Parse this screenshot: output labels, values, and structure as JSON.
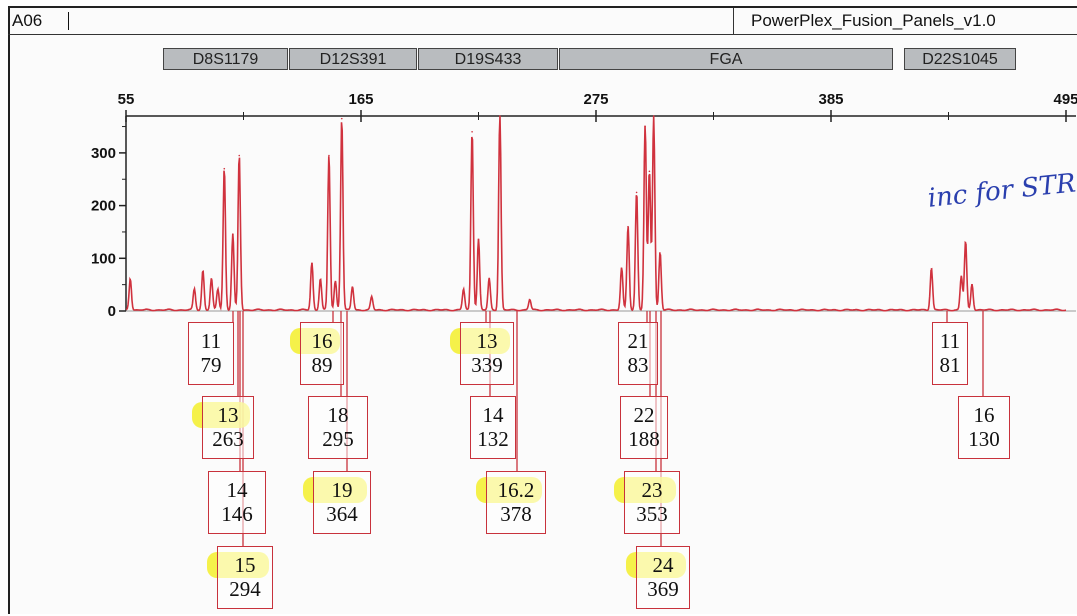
{
  "header": {
    "sample_id": "A06",
    "panel_name": "PowerPlex_Fusion_Panels_v1.0"
  },
  "markers": [
    {
      "name": "D8S1179"
    },
    {
      "name": "D12S391"
    },
    {
      "name": "D19S433"
    },
    {
      "name": "FGA"
    },
    {
      "name": "D22S1045"
    }
  ],
  "annotation": "inc for STR",
  "colors": {
    "trace": "#d0323e",
    "allele_border": "#c8323c",
    "highlight": "#f3ef2a",
    "marker_fill": "#b9bcbf",
    "annotation_ink": "#2a3fae"
  },
  "chart_data": {
    "type": "line",
    "title": "",
    "xlabel": "",
    "ylabel": "",
    "x_ticks": [
      "55",
      "165",
      "275",
      "385",
      "495"
    ],
    "y_ticks": [
      "0",
      "100",
      "200",
      "300"
    ],
    "xlim": [
      55,
      495
    ],
    "ylim": [
      0,
      370
    ],
    "grid": false,
    "peaks": [
      {
        "size": 57,
        "height": 60
      },
      {
        "size": 87,
        "height": 40
      },
      {
        "size": 91,
        "height": 75
      },
      {
        "size": 95,
        "height": 60
      },
      {
        "size": 98,
        "height": 40
      },
      {
        "size": 101,
        "height": 270
      },
      {
        "size": 105,
        "height": 145
      },
      {
        "size": 108,
        "height": 295
      },
      {
        "size": 142,
        "height": 90
      },
      {
        "size": 146,
        "height": 60
      },
      {
        "size": 150,
        "height": 295
      },
      {
        "size": 153,
        "height": 55
      },
      {
        "size": 156,
        "height": 365
      },
      {
        "size": 161,
        "height": 45
      },
      {
        "size": 170,
        "height": 25
      },
      {
        "size": 213,
        "height": 40
      },
      {
        "size": 217,
        "height": 340
      },
      {
        "size": 220,
        "height": 135
      },
      {
        "size": 225,
        "height": 60
      },
      {
        "size": 230,
        "height": 370
      },
      {
        "size": 244,
        "height": 20
      },
      {
        "size": 287,
        "height": 80
      },
      {
        "size": 290,
        "height": 160
      },
      {
        "size": 294,
        "height": 225
      },
      {
        "size": 298,
        "height": 350
      },
      {
        "size": 300,
        "height": 265
      },
      {
        "size": 302,
        "height": 370
      },
      {
        "size": 305,
        "height": 110
      },
      {
        "size": 432,
        "height": 80
      },
      {
        "size": 446,
        "height": 65
      },
      {
        "size": 448,
        "height": 130
      },
      {
        "size": 451,
        "height": 50
      }
    ],
    "alleles": [
      {
        "allele": "11",
        "value": "79",
        "highlight": false
      },
      {
        "allele": "13",
        "value": "263",
        "highlight": true
      },
      {
        "allele": "14",
        "value": "146",
        "highlight": false
      },
      {
        "allele": "15",
        "value": "294",
        "highlight": true
      },
      {
        "allele": "16",
        "value": "89",
        "highlight": true
      },
      {
        "allele": "18",
        "value": "295",
        "highlight": false
      },
      {
        "allele": "19",
        "value": "364",
        "highlight": true
      },
      {
        "allele": "13",
        "value": "339",
        "highlight": true
      },
      {
        "allele": "14",
        "value": "132",
        "highlight": false
      },
      {
        "allele": "16.2",
        "value": "378",
        "highlight": true
      },
      {
        "allele": "21",
        "value": "83",
        "highlight": false
      },
      {
        "allele": "22",
        "value": "188",
        "highlight": false
      },
      {
        "allele": "23",
        "value": "353",
        "highlight": true
      },
      {
        "allele": "24",
        "value": "369",
        "highlight": true
      },
      {
        "allele": "11",
        "value": "81",
        "highlight": false
      },
      {
        "allele": "16",
        "value": "130",
        "highlight": false
      }
    ]
  }
}
